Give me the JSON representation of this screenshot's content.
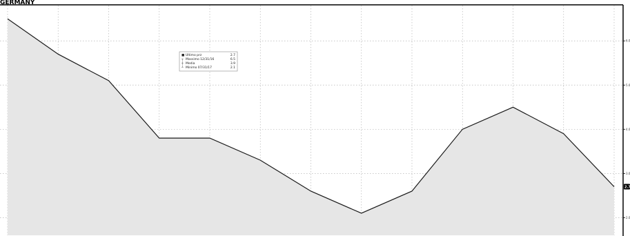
{
  "header": {
    "title": "GERMANY"
  },
  "colors": {
    "line": "#1a1a1a",
    "area": "#e6e6e6",
    "grid": "#b5b5b5",
    "frame": "#000000",
    "badge": "#000000"
  },
  "chart_data": {
    "type": "area",
    "title": "",
    "xlabel": "",
    "ylabel": "",
    "x": [
      0,
      1,
      2,
      3,
      4,
      5,
      6,
      7,
      8,
      9,
      10,
      11,
      12
    ],
    "series": [
      {
        "values": [
          6.5,
          5.7,
          5.1,
          3.8,
          3.8,
          3.3,
          2.6,
          2.1,
          2.6,
          4.0,
          4.5,
          3.9,
          2.7
        ]
      }
    ],
    "ylim": [
      1.6,
      6.8
    ],
    "yticks": [
      2,
      3,
      4,
      5,
      6
    ],
    "ytick_labels": [
      "2.0",
      "3.0",
      "4.0",
      "5.0",
      "6.0"
    ],
    "y_axis_position": "right",
    "grid": true,
    "last_value": {
      "value": 2.7,
      "label": "2.7"
    },
    "legend": {
      "position": "top-left",
      "entries": [
        {
          "marker": "■",
          "label": "Ultimo prz",
          "value": "2.7"
        },
        {
          "marker": "┬",
          "label": "Massimo 12/31/16",
          "value": "6.5"
        },
        {
          "marker": "┼",
          "label": "Media",
          "value": "3.9"
        },
        {
          "marker": "┴",
          "label": "Minimo 07/31/17",
          "value": "2.1"
        }
      ]
    }
  }
}
